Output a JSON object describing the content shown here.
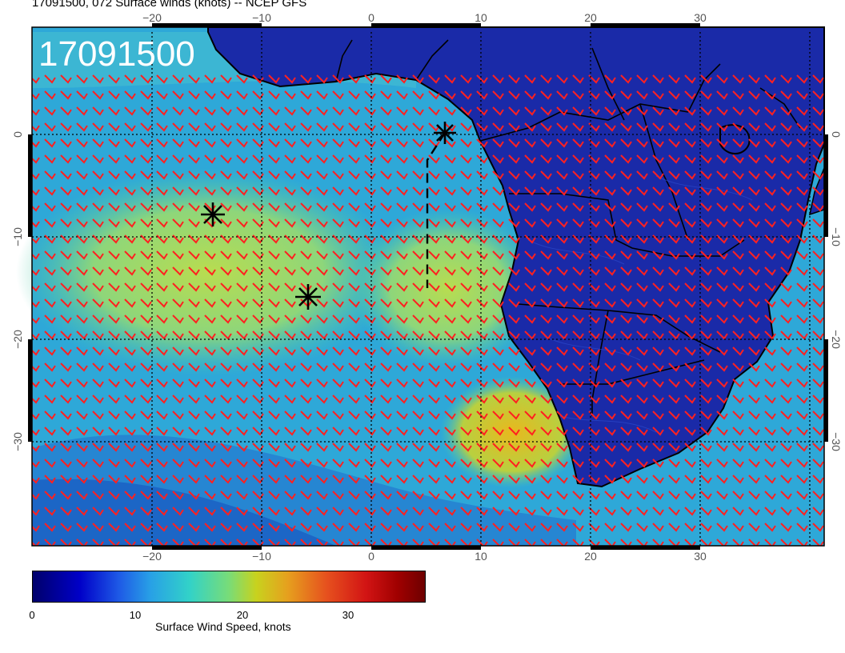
{
  "title": "17091500, 072 Surface winds (knots) -- NCEP GFS",
  "stamp": "17091500",
  "axes": {
    "lon_ticks": [
      "−20",
      "−10",
      "0",
      "10",
      "20",
      "30"
    ],
    "lat_ticks": [
      "0",
      "−10",
      "−20",
      "−30"
    ],
    "lon_range": [
      -31,
      41
    ],
    "lat_range": [
      -40,
      10
    ]
  },
  "colorbar": {
    "label": "Surface Wind Speed, knots",
    "ticks": [
      "0",
      "10",
      "20",
      "30"
    ],
    "range": [
      0,
      38
    ]
  },
  "markers": [
    {
      "name": "storm-marker",
      "lon": 7,
      "lat": 0
    },
    {
      "name": "storm-marker",
      "lon": -14.5,
      "lat": -8.5
    },
    {
      "name": "storm-marker",
      "lon": -5.5,
      "lat": -16
    }
  ],
  "colors": {
    "barb": "#ff2020",
    "land": "#1a2aa8",
    "ocean": "#2ea8d8",
    "coast": "#000000"
  }
}
